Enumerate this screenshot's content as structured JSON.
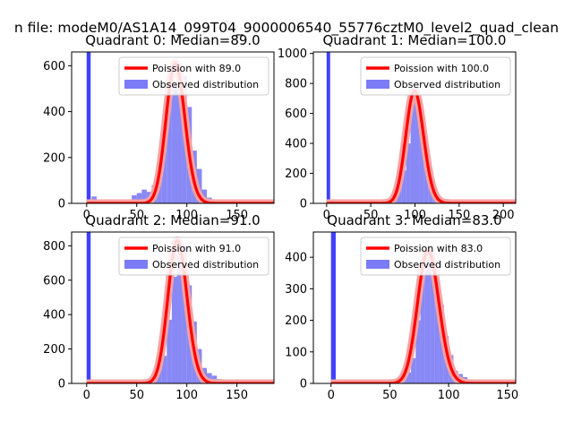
{
  "figure": {
    "suptitle": "n file: modeM0/AS1A14_099T04_9000006540_55776cztM0_level2_quad_clean"
  },
  "colors": {
    "hist": "#7b7bf5",
    "spike": "#0000ff",
    "poisson": "#ff0000",
    "poisson_glow": "#f4a3a3",
    "axes": "#000000",
    "legend_border": "#cccccc"
  },
  "chart_data": [
    {
      "type": "bar",
      "title": "Quadrant 0: Median=89.0",
      "median": 89.0,
      "xlim": [
        -15,
        187
      ],
      "ylim": [
        0,
        660
      ],
      "xticks": [
        0,
        50,
        100,
        150
      ],
      "yticks": [
        0,
        200,
        400,
        600
      ],
      "spike": {
        "x": 0,
        "value": 660
      },
      "legend": [
        "Poission with 89.0",
        "Observed distribution"
      ],
      "bin_width": 5,
      "bins": [
        [
          5,
          30
        ],
        [
          25,
          3
        ],
        [
          30,
          6
        ],
        [
          35,
          8
        ],
        [
          40,
          12
        ],
        [
          45,
          35
        ],
        [
          50,
          45
        ],
        [
          55,
          60
        ],
        [
          60,
          50
        ],
        [
          65,
          80
        ],
        [
          70,
          110
        ],
        [
          75,
          250
        ],
        [
          80,
          450
        ],
        [
          85,
          520
        ],
        [
          90,
          610
        ],
        [
          95,
          555
        ],
        [
          100,
          420
        ],
        [
          105,
          230
        ],
        [
          110,
          150
        ],
        [
          115,
          60
        ],
        [
          120,
          25
        ],
        [
          125,
          15
        ],
        [
          130,
          10
        ],
        [
          135,
          5
        ],
        [
          140,
          5
        ],
        [
          150,
          3
        ],
        [
          160,
          3
        ],
        [
          175,
          3
        ]
      ]
    },
    {
      "type": "bar",
      "title": "Quadrant 1: Median=100.0",
      "median": 100.0,
      "xlim": [
        -15,
        214
      ],
      "ylim": [
        0,
        1010
      ],
      "xticks": [
        0,
        50,
        100,
        150,
        200
      ],
      "yticks": [
        0,
        200,
        400,
        600,
        800,
        1000
      ],
      "spike": {
        "x": 0,
        "value": 1010
      },
      "legend": [
        "Poission with 100.0",
        "Observed distribution"
      ],
      "bin_width": 5,
      "bins": [
        [
          5,
          5
        ],
        [
          60,
          5
        ],
        [
          65,
          10
        ],
        [
          70,
          20
        ],
        [
          75,
          60
        ],
        [
          80,
          100
        ],
        [
          85,
          220
        ],
        [
          90,
          400
        ],
        [
          95,
          700
        ],
        [
          100,
          750
        ],
        [
          105,
          550
        ],
        [
          110,
          380
        ],
        [
          115,
          200
        ],
        [
          120,
          70
        ],
        [
          125,
          45
        ],
        [
          130,
          25
        ],
        [
          135,
          15
        ],
        [
          140,
          10
        ],
        [
          145,
          10
        ],
        [
          150,
          5
        ],
        [
          155,
          5
        ],
        [
          160,
          3
        ],
        [
          200,
          3
        ]
      ]
    },
    {
      "type": "bar",
      "title": "Quadrant 2: Median=91.0",
      "median": 91.0,
      "xlim": [
        -15,
        187
      ],
      "ylim": [
        0,
        880
      ],
      "xticks": [
        0,
        50,
        100,
        150
      ],
      "yticks": [
        0,
        200,
        400,
        600,
        800
      ],
      "spike": {
        "x": 0,
        "value": 880
      },
      "legend": [
        "Poission with 91.0",
        "Observed distribution"
      ],
      "bin_width": 5,
      "bins": [
        [
          60,
          10
        ],
        [
          65,
          40
        ],
        [
          70,
          80
        ],
        [
          75,
          160
        ],
        [
          80,
          370
        ],
        [
          85,
          620
        ],
        [
          90,
          830
        ],
        [
          95,
          800
        ],
        [
          100,
          570
        ],
        [
          105,
          360
        ],
        [
          110,
          200
        ],
        [
          115,
          90
        ],
        [
          120,
          60
        ],
        [
          125,
          45
        ],
        [
          130,
          25
        ],
        [
          135,
          20
        ],
        [
          140,
          10
        ],
        [
          145,
          8
        ],
        [
          150,
          3
        ]
      ]
    },
    {
      "type": "bar",
      "title": "Quadrant 3: Median=83.0",
      "median": 83.0,
      "xlim": [
        -15,
        157
      ],
      "ylim": [
        0,
        480
      ],
      "xticks": [
        0,
        50,
        100,
        150
      ],
      "yticks": [
        0,
        100,
        200,
        300,
        400
      ],
      "spike": {
        "x": 0,
        "value": 480
      },
      "legend": [
        "Poission with 83.0",
        "Observed distribution"
      ],
      "bin_width": 4,
      "bins": [
        [
          4,
          10
        ],
        [
          52,
          2
        ],
        [
          56,
          8
        ],
        [
          60,
          15
        ],
        [
          64,
          35
        ],
        [
          68,
          80
        ],
        [
          72,
          200
        ],
        [
          76,
          360
        ],
        [
          80,
          420
        ],
        [
          84,
          410
        ],
        [
          88,
          330
        ],
        [
          92,
          250
        ],
        [
          96,
          150
        ],
        [
          100,
          90
        ],
        [
          104,
          40
        ],
        [
          108,
          30
        ],
        [
          112,
          20
        ],
        [
          116,
          10
        ],
        [
          120,
          5
        ],
        [
          124,
          4
        ],
        [
          128,
          3
        ],
        [
          140,
          2
        ]
      ]
    }
  ]
}
